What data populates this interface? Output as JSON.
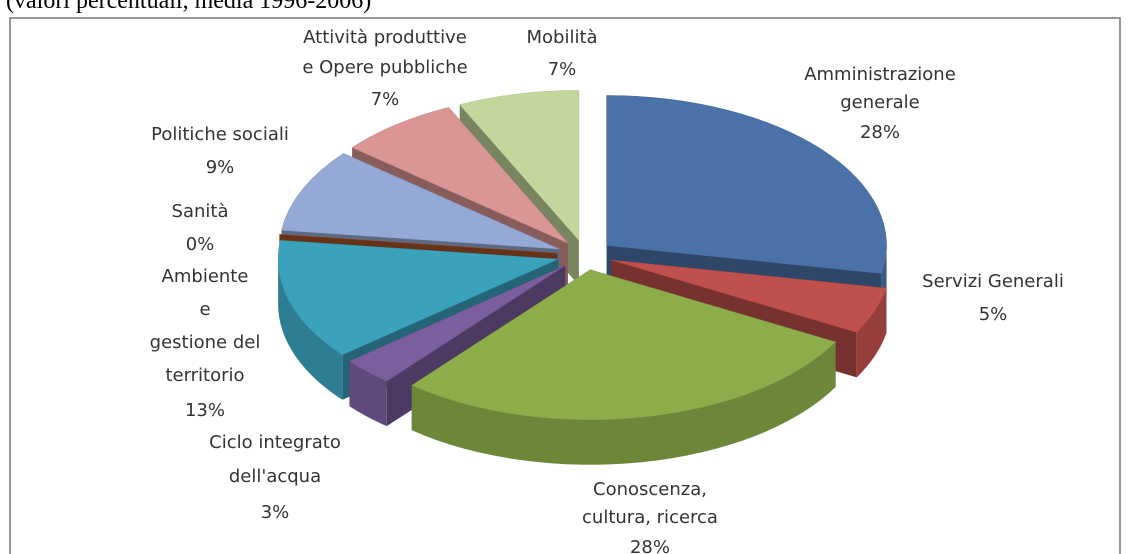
{
  "chart_data": {
    "type": "pie3d",
    "subtitle": "(valori percentuali, media 1996-2006)",
    "categories": [
      [
        "Amministrazione",
        "generale"
      ],
      [
        "Servizi Generali"
      ],
      [
        "Conoscenza,",
        "cultura,  ricerca"
      ],
      [
        "Ciclo integrato",
        "dell'acqua"
      ],
      [
        "Ambiente",
        "e",
        "gestione del",
        "territorio"
      ],
      [
        "Sanità"
      ],
      [
        "Politiche sociali"
      ],
      [
        "Attività produttive",
        "e Opere pubbliche"
      ],
      [
        "Mobilità"
      ]
    ],
    "values": [
      28,
      5,
      28,
      3,
      13,
      0,
      9,
      7,
      7
    ],
    "value_labels": [
      "28%",
      "5%",
      "28%",
      "3%",
      "13%",
      "0%",
      "9%",
      "7%",
      "7%"
    ],
    "colors": [
      "#4a72a8",
      "#c0504d",
      "#8cad4a",
      "#7b5e9e",
      "#3aa2bb",
      "#a5522a",
      "#95a9d6",
      "#d99694",
      "#c3d69b"
    ]
  }
}
